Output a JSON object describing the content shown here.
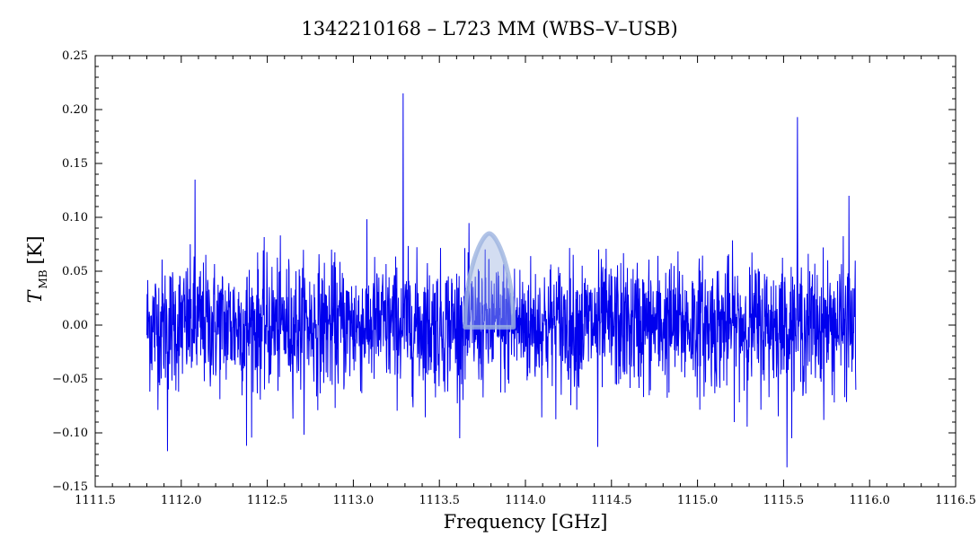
{
  "chart_data": {
    "type": "line",
    "title": "1342210168 – L723 MM (WBS–V–USB)",
    "xlabel": "Frequency [GHz]",
    "ylabel": {
      "symbol": "T",
      "subscript": "MB",
      "unit": "[K]"
    },
    "xlim": [
      1111.5,
      1116.5
    ],
    "ylim": [
      -0.15,
      0.25
    ],
    "x_ticks": [
      1111.5,
      1112.0,
      1112.5,
      1113.0,
      1113.5,
      1114.0,
      1114.5,
      1115.0,
      1115.5,
      1116.0,
      1116.5
    ],
    "x_tick_labels": [
      "1111.5",
      "1112.0",
      "1112.5",
      "1113.0",
      "1113.5",
      "1114.0",
      "1114.5",
      "1115.0",
      "1115.5",
      "1116.0",
      "1116.5"
    ],
    "y_ticks": [
      -0.15,
      -0.1,
      -0.05,
      0.0,
      0.05,
      0.1,
      0.15,
      0.2,
      0.25
    ],
    "y_tick_labels": [
      "−0.15",
      "−0.10",
      "−0.05",
      "0.00",
      "0.05",
      "0.10",
      "0.15",
      "0.20",
      "0.25"
    ],
    "grid": false,
    "series": [
      {
        "color": "#0000ee",
        "x_range": [
          1111.8,
          1115.92
        ],
        "noise_rms": 0.03,
        "spikes": [
          {
            "x": 1112.08,
            "y": 0.135
          },
          {
            "x": 1111.92,
            "y": -0.117
          },
          {
            "x": 1112.38,
            "y": -0.112
          },
          {
            "x": 1113.29,
            "y": 0.215
          },
          {
            "x": 1114.42,
            "y": -0.113
          },
          {
            "x": 1115.58,
            "y": 0.193
          },
          {
            "x": 1115.52,
            "y": -0.132
          },
          {
            "x": 1115.88,
            "y": 0.12
          }
        ]
      }
    ],
    "annotation": {
      "type": "watermark-ghost-profile",
      "color": "#9db4e0",
      "x_center": 1113.79,
      "y_peak": 0.085
    }
  }
}
